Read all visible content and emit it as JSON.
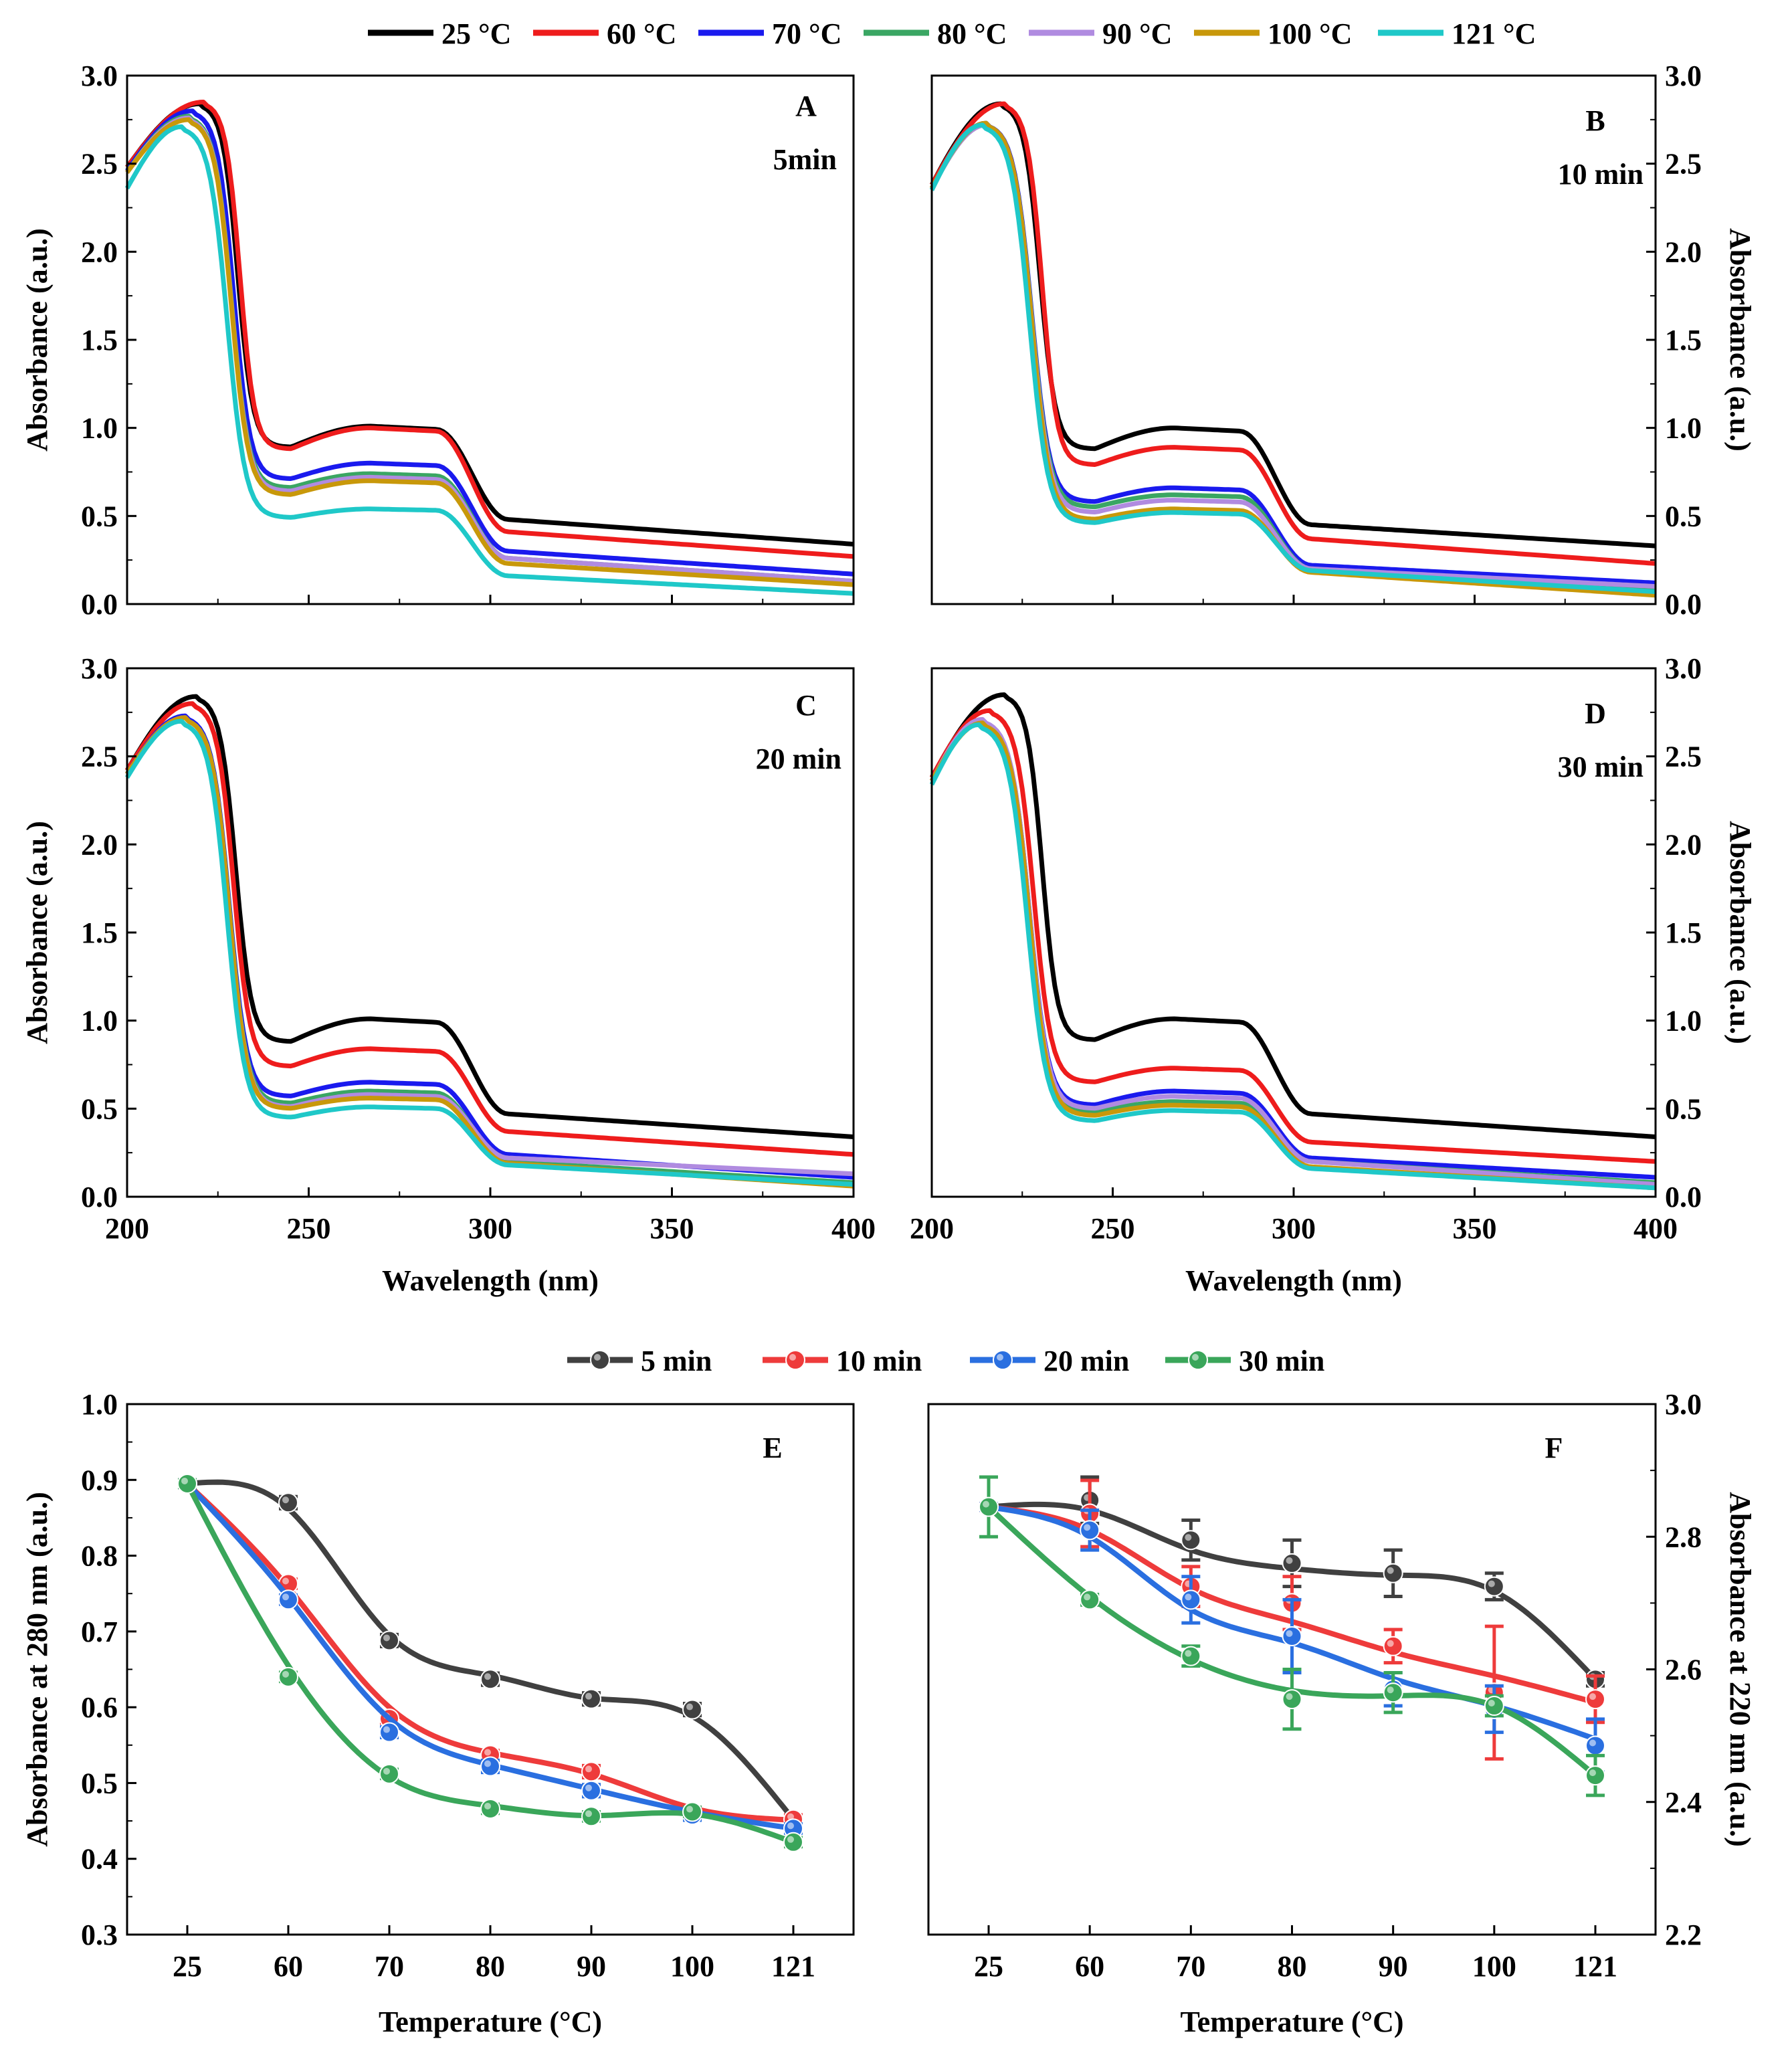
{
  "legend_top": {
    "series": [
      {
        "label": "25 °C",
        "color": "#000000"
      },
      {
        "label": "60 °C",
        "color": "#ee1c1c"
      },
      {
        "label": "70 °C",
        "color": "#1a1aee"
      },
      {
        "label": "80 °C",
        "color": "#3aa663"
      },
      {
        "label": "90 °C",
        "color": "#b08be0"
      },
      {
        "label": "100 °C",
        "color": "#c8980a"
      },
      {
        "label": "121 °C",
        "color": "#1fc8c8"
      }
    ]
  },
  "legend_bottom": {
    "series": [
      {
        "label": "5 min",
        "color": "#404040"
      },
      {
        "label": "10 min",
        "color": "#ee3b3b"
      },
      {
        "label": "20 min",
        "color": "#2a6fe0"
      },
      {
        "label": "30 min",
        "color": "#3aa65a"
      }
    ]
  },
  "chart_data": [
    {
      "id": "A",
      "panel_letter": "A",
      "time_label": "5min",
      "type": "line",
      "xlabel": "",
      "ylabel": "Absorbance (a.u.)",
      "xlim": [
        200,
        400
      ],
      "ylim": [
        0,
        3.0
      ],
      "xticks": [
        "200",
        "250",
        "300",
        "350",
        "400"
      ],
      "yticks": [
        "0.0",
        "0.5",
        "1.0",
        "1.5",
        "2.0",
        "2.5",
        "3.0"
      ],
      "series": [
        {
          "name": "25 °C",
          "color": "#000000",
          "params": [
            2.48,
            2.84,
            220,
            0.89,
            1.01,
            0.48,
            0.34
          ]
        },
        {
          "name": "60 °C",
          "color": "#ee1c1c",
          "params": [
            2.48,
            2.85,
            221,
            0.88,
            1.0,
            0.41,
            0.27
          ]
        },
        {
          "name": "70 °C",
          "color": "#1a1aee",
          "params": [
            2.46,
            2.8,
            218,
            0.71,
            0.8,
            0.3,
            0.17
          ]
        },
        {
          "name": "80 °C",
          "color": "#3aa663",
          "params": [
            2.45,
            2.77,
            217,
            0.66,
            0.74,
            0.26,
            0.13
          ]
        },
        {
          "name": "90 °C",
          "color": "#b08be0",
          "params": [
            2.45,
            2.76,
            217,
            0.64,
            0.72,
            0.26,
            0.13
          ]
        },
        {
          "name": "100 °C",
          "color": "#c8980a",
          "params": [
            2.45,
            2.75,
            217,
            0.62,
            0.7,
            0.23,
            0.11
          ]
        },
        {
          "name": "121 °C",
          "color": "#1fc8c8",
          "params": [
            2.36,
            2.71,
            215,
            0.49,
            0.54,
            0.16,
            0.06
          ]
        }
      ]
    },
    {
      "id": "B",
      "panel_letter": "B",
      "time_label": "10 min",
      "type": "line",
      "xlabel": "",
      "ylabel": "Absorbance (a.u.)",
      "xlim": [
        200,
        400
      ],
      "ylim": [
        0,
        3.0
      ],
      "xticks": [
        "200",
        "250",
        "300",
        "350",
        "400"
      ],
      "yticks": [
        "0.0",
        "0.5",
        "1.0",
        "1.5",
        "2.0",
        "2.5",
        "3.0"
      ],
      "series": [
        {
          "name": "25 °C",
          "color": "#000000",
          "params": [
            2.38,
            2.84,
            219,
            0.88,
            1.0,
            0.45,
            0.33
          ]
        },
        {
          "name": "60 °C",
          "color": "#ee1c1c",
          "params": [
            2.38,
            2.84,
            220,
            0.79,
            0.89,
            0.37,
            0.23
          ]
        },
        {
          "name": "70 °C",
          "color": "#1a1aee",
          "params": [
            2.36,
            2.73,
            215,
            0.58,
            0.66,
            0.22,
            0.12
          ]
        },
        {
          "name": "80 °C",
          "color": "#3aa663",
          "params": [
            2.36,
            2.72,
            215,
            0.55,
            0.62,
            0.2,
            0.08
          ]
        },
        {
          "name": "90 °C",
          "color": "#b08be0",
          "params": [
            2.36,
            2.72,
            215,
            0.52,
            0.59,
            0.2,
            0.1
          ]
        },
        {
          "name": "100 °C",
          "color": "#c8980a",
          "params": [
            2.36,
            2.73,
            215,
            0.48,
            0.54,
            0.18,
            0.05
          ]
        },
        {
          "name": "121 °C",
          "color": "#1fc8c8",
          "params": [
            2.35,
            2.72,
            214,
            0.46,
            0.52,
            0.19,
            0.07
          ]
        }
      ]
    },
    {
      "id": "C",
      "panel_letter": "C",
      "time_label": "20 min",
      "type": "line",
      "xlabel": "Wavelength (nm)",
      "ylabel": "Absorbance (a.u.)",
      "xlim": [
        200,
        400
      ],
      "ylim": [
        0,
        3.0
      ],
      "xticks": [
        "200",
        "250",
        "300",
        "350",
        "400"
      ],
      "yticks": [
        "0.0",
        "0.5",
        "1.0",
        "1.5",
        "2.0",
        "2.5",
        "3.0"
      ],
      "series": [
        {
          "name": "25 °C",
          "color": "#000000",
          "params": [
            2.42,
            2.84,
            219,
            0.88,
            1.01,
            0.47,
            0.34
          ]
        },
        {
          "name": "60 °C",
          "color": "#ee1c1c",
          "params": [
            2.42,
            2.8,
            218,
            0.74,
            0.84,
            0.37,
            0.24
          ]
        },
        {
          "name": "70 °C",
          "color": "#1a1aee",
          "params": [
            2.4,
            2.73,
            216,
            0.57,
            0.65,
            0.24,
            0.11
          ]
        },
        {
          "name": "80 °C",
          "color": "#3aa663",
          "params": [
            2.4,
            2.72,
            216,
            0.53,
            0.6,
            0.2,
            0.08
          ]
        },
        {
          "name": "90 °C",
          "color": "#b08be0",
          "params": [
            2.4,
            2.72,
            216,
            0.51,
            0.58,
            0.22,
            0.13
          ]
        },
        {
          "name": "100 °C",
          "color": "#c8980a",
          "params": [
            2.4,
            2.72,
            216,
            0.5,
            0.56,
            0.19,
            0.06
          ]
        },
        {
          "name": "121 °C",
          "color": "#1fc8c8",
          "params": [
            2.38,
            2.7,
            215,
            0.45,
            0.51,
            0.18,
            0.07
          ]
        }
      ]
    },
    {
      "id": "D",
      "panel_letter": "D",
      "time_label": "30 min",
      "type": "line",
      "xlabel": "Wavelength (nm)",
      "ylabel": "Absorbance (a.u.)",
      "xlim": [
        200,
        400
      ],
      "ylim": [
        0,
        3.0
      ],
      "xticks": [
        "200",
        "250",
        "300",
        "350",
        "400"
      ],
      "yticks": [
        "0.0",
        "0.5",
        "1.0",
        "1.5",
        "2.0",
        "2.5",
        "3.0"
      ],
      "series": [
        {
          "name": "25 °C",
          "color": "#000000",
          "params": [
            2.38,
            2.85,
            220,
            0.89,
            1.01,
            0.47,
            0.34
          ]
        },
        {
          "name": "60 °C",
          "color": "#ee1c1c",
          "params": [
            2.38,
            2.76,
            216,
            0.65,
            0.73,
            0.31,
            0.2
          ]
        },
        {
          "name": "70 °C",
          "color": "#1a1aee",
          "params": [
            2.36,
            2.7,
            214,
            0.52,
            0.6,
            0.22,
            0.11
          ]
        },
        {
          "name": "80 °C",
          "color": "#3aa663",
          "params": [
            2.36,
            2.7,
            214,
            0.48,
            0.54,
            0.2,
            0.08
          ]
        },
        {
          "name": "90 °C",
          "color": "#b08be0",
          "params": [
            2.36,
            2.71,
            214,
            0.5,
            0.57,
            0.2,
            0.07
          ]
        },
        {
          "name": "100 °C",
          "color": "#c8980a",
          "params": [
            2.36,
            2.69,
            214,
            0.46,
            0.52,
            0.17,
            0.05
          ]
        },
        {
          "name": "121 °C",
          "color": "#1fc8c8",
          "params": [
            2.34,
            2.68,
            213,
            0.43,
            0.49,
            0.16,
            0.05
          ]
        }
      ]
    },
    {
      "id": "E",
      "panel_letter": "E",
      "type": "line",
      "xlabel": "Temperature (°C)",
      "ylabel": "Absorbance at 280 nm (a.u.)",
      "categories": [
        "25",
        "60",
        "70",
        "80",
        "90",
        "100",
        "121"
      ],
      "ylim": [
        0.3,
        1.0
      ],
      "yticks": [
        "0.3",
        "0.4",
        "0.5",
        "0.6",
        "0.7",
        "0.8",
        "0.9",
        "1.0"
      ],
      "series": [
        {
          "name": "5 min",
          "color": "#404040",
          "values": [
            0.895,
            0.87,
            0.688,
            0.637,
            0.611,
            0.597,
            0.452
          ],
          "errors": [
            0.005,
            0.008,
            0.008,
            0.008,
            0.008,
            0.008,
            0.006
          ],
          "fit": [
            0.895,
            0.862,
            0.695,
            0.642,
            0.612,
            0.588,
            0.452
          ]
        },
        {
          "name": "10 min",
          "color": "#ee3b3b",
          "values": [
            0.895,
            0.763,
            0.585,
            0.537,
            0.515,
            0.462,
            0.452
          ],
          "errors": [
            0.005,
            0.006,
            0.006,
            0.006,
            0.008,
            0.006,
            0.006
          ],
          "fit": [
            0.895,
            0.758,
            0.6,
            0.54,
            0.512,
            0.467,
            0.451
          ]
        },
        {
          "name": "20 min",
          "color": "#2a6fe0",
          "values": [
            0.895,
            0.742,
            0.567,
            0.522,
            0.49,
            0.458,
            0.44
          ],
          "errors": [
            0.005,
            0.006,
            0.007,
            0.008,
            0.008,
            0.007,
            0.006
          ],
          "fit": [
            0.895,
            0.745,
            0.585,
            0.524,
            0.492,
            0.462,
            0.44
          ]
        },
        {
          "name": "30 min",
          "color": "#3aa65a",
          "values": [
            0.895,
            0.64,
            0.512,
            0.466,
            0.456,
            0.462,
            0.422
          ],
          "errors": [
            0.005,
            0.006,
            0.006,
            0.006,
            0.006,
            0.006,
            0.006
          ],
          "fit": [
            0.895,
            0.655,
            0.508,
            0.47,
            0.457,
            0.459,
            0.422
          ]
        }
      ]
    },
    {
      "id": "F",
      "panel_letter": "F",
      "type": "line",
      "xlabel": "Temperature (°C)",
      "ylabel": "Absorbance at 220 nm (a.u.)",
      "categories": [
        "25",
        "60",
        "70",
        "80",
        "90",
        "100",
        "121"
      ],
      "ylim": [
        2.2,
        3.0
      ],
      "yticks": [
        "2.2",
        "2.4",
        "2.6",
        "2.8",
        "3.0"
      ],
      "series": [
        {
          "name": "5 min",
          "color": "#404040",
          "values": [
            2.845,
            2.855,
            2.795,
            2.76,
            2.745,
            2.725,
            2.585
          ],
          "errors": [
            0.005,
            0.035,
            0.03,
            0.035,
            0.035,
            0.02,
            0.01
          ],
          "fit": [
            2.845,
            2.84,
            2.78,
            2.752,
            2.742,
            2.718,
            2.585
          ]
        },
        {
          "name": "10 min",
          "color": "#ee3b3b",
          "values": [
            2.845,
            2.835,
            2.725,
            2.7,
            2.635,
            2.565,
            2.555
          ],
          "errors": [
            0.005,
            0.05,
            0.03,
            0.04,
            0.025,
            0.1,
            0.035
          ],
          "fit": [
            2.845,
            2.81,
            2.722,
            2.672,
            2.626,
            2.59,
            2.55
          ]
        },
        {
          "name": "20 min",
          "color": "#2a6fe0",
          "values": [
            2.845,
            2.81,
            2.705,
            2.65,
            2.57,
            2.54,
            2.485
          ],
          "errors": [
            0.005,
            0.03,
            0.035,
            0.055,
            0.025,
            0.035,
            0.04
          ],
          "fit": [
            2.845,
            2.8,
            2.69,
            2.64,
            2.586,
            2.545,
            2.495
          ]
        },
        {
          "name": "30 min",
          "color": "#3aa65a",
          "values": [
            2.845,
            2.705,
            2.62,
            2.555,
            2.565,
            2.545,
            2.44
          ],
          "errors": [
            0.045,
            0.008,
            0.015,
            0.045,
            0.03,
            0.015,
            0.03
          ],
          "fit": [
            2.845,
            2.71,
            2.615,
            2.568,
            2.56,
            2.545,
            2.44
          ]
        }
      ]
    }
  ]
}
